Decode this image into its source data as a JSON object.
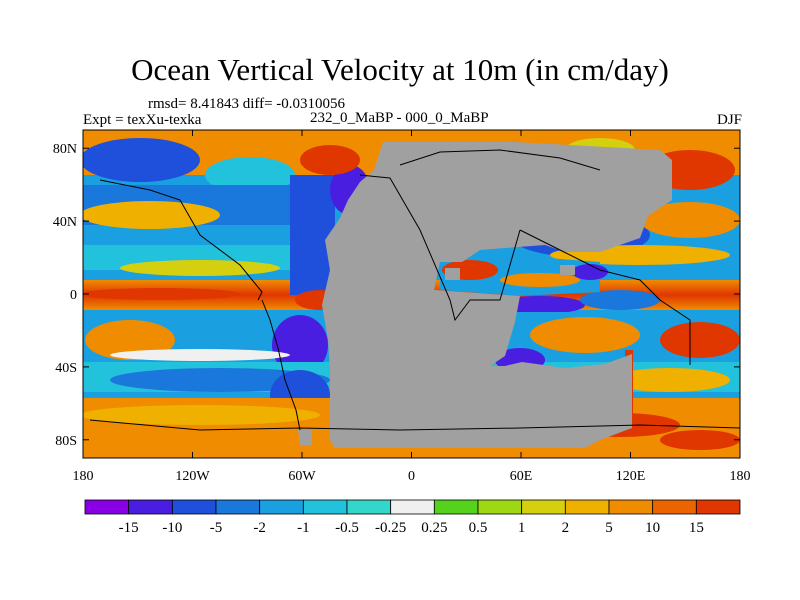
{
  "title": "Ocean Vertical Velocity at 10m (in cm/day)",
  "stats": "rmsd= 8.41843 diff= -0.0310056",
  "experiment": "Expt = texXu-texka",
  "difference_label": "232_0_MaBP - 000_0_MaBP",
  "season": "DJF",
  "map": {
    "x_ticks": [
      {
        "lon": -180,
        "label": "180"
      },
      {
        "lon": -120,
        "label": "120W"
      },
      {
        "lon": -60,
        "label": "60W"
      },
      {
        "lon": 0,
        "label": "0"
      },
      {
        "lon": 60,
        "label": "60E"
      },
      {
        "lon": 120,
        "label": "120E"
      },
      {
        "lon": 180,
        "label": "180"
      }
    ],
    "y_ticks": [
      {
        "lat": 80,
        "label": "80N"
      },
      {
        "lat": 40,
        "label": "40N"
      },
      {
        "lat": 0,
        "label": "0"
      },
      {
        "lat": -40,
        "label": "40S"
      },
      {
        "lat": -80,
        "label": "80S"
      }
    ],
    "lon_range": [
      -180,
      180
    ],
    "lat_range": [
      -90,
      90
    ],
    "land_color": "#a0a0a0"
  },
  "colorbar": {
    "colors": [
      "#8a00e6",
      "#4a1ee0",
      "#1e50dc",
      "#1a78dc",
      "#1aa0e0",
      "#22c2dc",
      "#34d6cc",
      "#f0f0f0",
      "#54d21c",
      "#9ed814",
      "#d4d010",
      "#f0b000",
      "#f08c00",
      "#ea6400",
      "#e03600"
    ],
    "labels": [
      "-15",
      "-10",
      "-5",
      "-2",
      "-1",
      "-0.5",
      "-0.25",
      "0.25",
      "0.5",
      "1",
      "2",
      "5",
      "10",
      "15"
    ]
  }
}
